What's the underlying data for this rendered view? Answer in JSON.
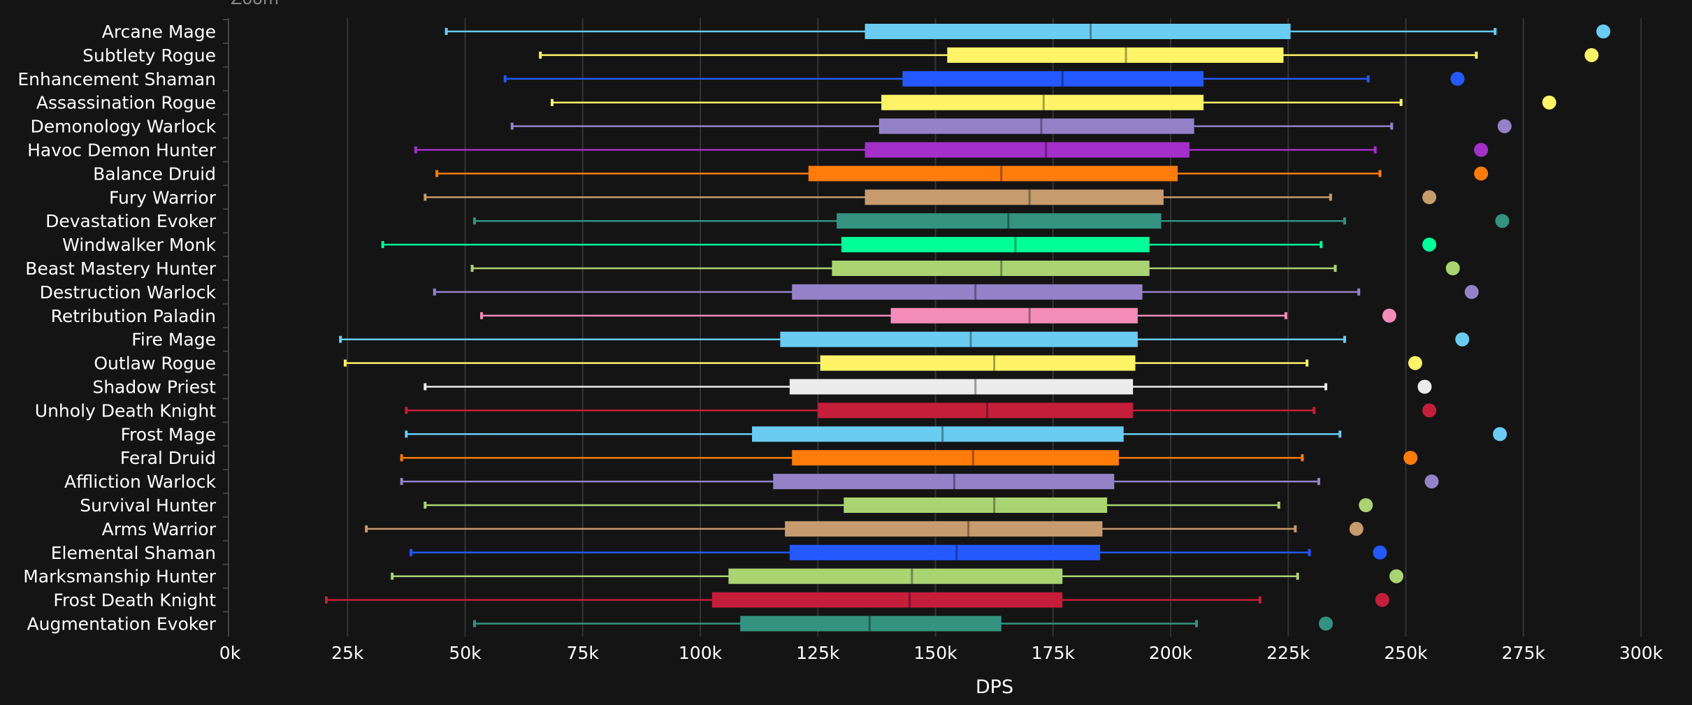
{
  "zoom_label": "Zoom",
  "chart_data": {
    "type": "boxplot",
    "orientation": "horizontal",
    "xlabel": "DPS",
    "xlim": [
      0,
      300000
    ],
    "xticks": [
      0,
      25000,
      50000,
      75000,
      100000,
      125000,
      150000,
      175000,
      200000,
      225000,
      250000,
      275000,
      300000
    ],
    "xtick_labels": [
      "0k",
      "25k",
      "50k",
      "75k",
      "100k",
      "125k",
      "150k",
      "175k",
      "200k",
      "225k",
      "250k",
      "275k",
      "300k"
    ],
    "grid": true,
    "legend": "none",
    "categories": [
      "Arcane Mage",
      "Subtlety Rogue",
      "Enhancement Shaman",
      "Assassination Rogue",
      "Demonology Warlock",
      "Havoc Demon Hunter",
      "Balance Druid",
      "Fury Warrior",
      "Devastation Evoker",
      "Windwalker Monk",
      "Beast Mastery Hunter",
      "Destruction Warlock",
      "Retribution Paladin",
      "Fire Mage",
      "Outlaw Rogue",
      "Shadow Priest",
      "Unholy Death Knight",
      "Frost Mage",
      "Feral Druid",
      "Affliction Warlock",
      "Survival Hunter",
      "Arms Warrior",
      "Elemental Shaman",
      "Marksmanship Hunter",
      "Frost Death Knight",
      "Augmentation Evoker"
    ],
    "boxes": [
      {
        "low": 46000,
        "q1": 135000,
        "median": 183000,
        "q3": 225500,
        "high": 269000,
        "max": 292000,
        "color": "#69ccf0"
      },
      {
        "low": 66000,
        "q1": 152500,
        "median": 190500,
        "q3": 224000,
        "high": 265000,
        "max": 289500,
        "color": "#fff468"
      },
      {
        "low": 58500,
        "q1": 143000,
        "median": 177000,
        "q3": 207000,
        "high": 242000,
        "max": 261000,
        "color": "#2459ff"
      },
      {
        "low": 68500,
        "q1": 138500,
        "median": 173000,
        "q3": 207000,
        "high": 249000,
        "max": 280500,
        "color": "#fff468"
      },
      {
        "low": 60000,
        "q1": 138000,
        "median": 172500,
        "q3": 205000,
        "high": 247000,
        "max": 271000,
        "color": "#9482c9"
      },
      {
        "low": 39500,
        "q1": 135000,
        "median": 173500,
        "q3": 204000,
        "high": 243500,
        "max": 266000,
        "color": "#a330c9"
      },
      {
        "low": 44000,
        "q1": 123000,
        "median": 164000,
        "q3": 201500,
        "high": 244500,
        "max": 266000,
        "color": "#ff7c0a"
      },
      {
        "low": 41500,
        "q1": 135000,
        "median": 170000,
        "q3": 198500,
        "high": 234000,
        "max": 255000,
        "color": "#c69b6d"
      },
      {
        "low": 52000,
        "q1": 129000,
        "median": 165500,
        "q3": 198000,
        "high": 237000,
        "max": 270500,
        "color": "#33937f"
      },
      {
        "low": 32500,
        "q1": 130000,
        "median": 167000,
        "q3": 195500,
        "high": 232000,
        "max": 255000,
        "color": "#00ff98"
      },
      {
        "low": 51500,
        "q1": 128000,
        "median": 164000,
        "q3": 195500,
        "high": 235000,
        "max": 260000,
        "color": "#aad372"
      },
      {
        "low": 43500,
        "q1": 119500,
        "median": 158500,
        "q3": 194000,
        "high": 240000,
        "max": 264000,
        "color": "#9482c9"
      },
      {
        "low": 53500,
        "q1": 140500,
        "median": 170000,
        "q3": 193000,
        "high": 224500,
        "max": 246500,
        "color": "#f48cba"
      },
      {
        "low": 23500,
        "q1": 117000,
        "median": 157500,
        "q3": 193000,
        "high": 237000,
        "max": 262000,
        "color": "#69ccf0"
      },
      {
        "low": 24500,
        "q1": 125500,
        "median": 162500,
        "q3": 192500,
        "high": 229000,
        "max": 252000,
        "color": "#fff468"
      },
      {
        "low": 41500,
        "q1": 119000,
        "median": 158500,
        "q3": 192000,
        "high": 233000,
        "max": 254000,
        "color": "#ececec"
      },
      {
        "low": 37500,
        "q1": 125000,
        "median": 161000,
        "q3": 192000,
        "high": 230500,
        "max": 255000,
        "color": "#c41e3a"
      },
      {
        "low": 37500,
        "q1": 111000,
        "median": 151500,
        "q3": 190000,
        "high": 236000,
        "max": 270000,
        "color": "#69ccf0"
      },
      {
        "low": 36500,
        "q1": 119500,
        "median": 158000,
        "q3": 189000,
        "high": 228000,
        "max": 251000,
        "color": "#ff7c0a"
      },
      {
        "low": 36500,
        "q1": 115500,
        "median": 154000,
        "q3": 188000,
        "high": 231500,
        "max": 255500,
        "color": "#9482c9"
      },
      {
        "low": 41500,
        "q1": 130500,
        "median": 162500,
        "q3": 186500,
        "high": 223000,
        "max": 241500,
        "color": "#aad372"
      },
      {
        "low": 29000,
        "q1": 118000,
        "median": 157000,
        "q3": 185500,
        "high": 226500,
        "max": 239500,
        "color": "#c69b6d"
      },
      {
        "low": 38500,
        "q1": 119000,
        "median": 154500,
        "q3": 185000,
        "high": 229500,
        "max": 244500,
        "color": "#2459ff"
      },
      {
        "low": 34500,
        "q1": 106000,
        "median": 145000,
        "q3": 177000,
        "high": 227000,
        "max": 248000,
        "color": "#aad372"
      },
      {
        "low": 20500,
        "q1": 102500,
        "median": 144500,
        "q3": 177000,
        "high": 219000,
        "max": 245000,
        "color": "#c41e3a"
      },
      {
        "low": 52000,
        "q1": 108500,
        "median": 136000,
        "q3": 164000,
        "high": 205500,
        "max": 233000,
        "color": "#33937f"
      }
    ]
  }
}
